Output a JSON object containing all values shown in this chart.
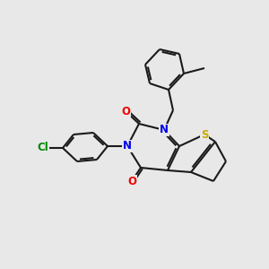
{
  "background_color": "#e8e8e8",
  "bond_color": "#1a1a1a",
  "atom_colors": {
    "N": "#0000ee",
    "O": "#ee0000",
    "S": "#ccaa00",
    "Cl": "#008800",
    "C": "#1a1a1a"
  },
  "figsize": [
    3.0,
    3.0
  ],
  "dpi": 100
}
